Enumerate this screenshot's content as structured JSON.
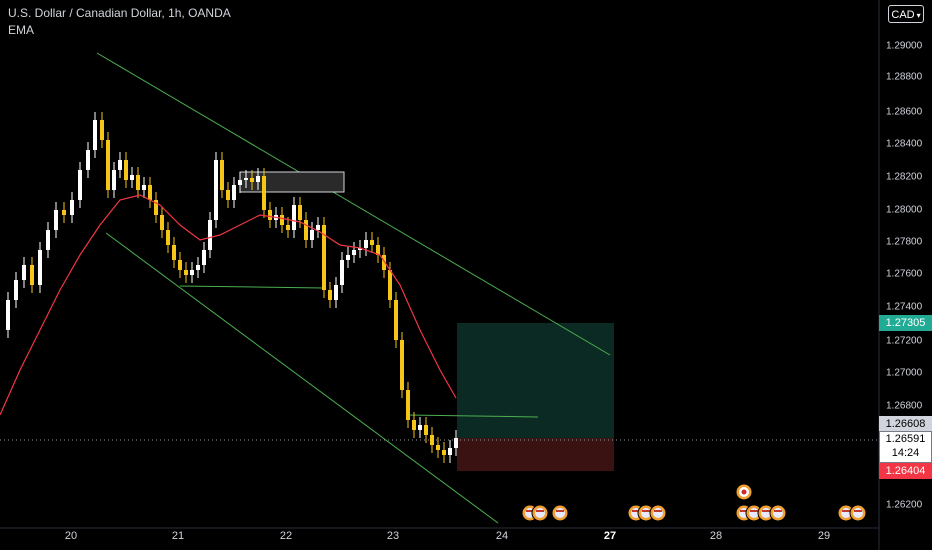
{
  "header": {
    "title": "U.S. Dollar / Canadian Dollar, 1h, OANDA",
    "indicator": "EMA"
  },
  "currency_button": {
    "label": "CAD",
    "icon": "chevron-down-icon"
  },
  "y_axis": {
    "labels": [
      "1.29000",
      "1.28800",
      "1.28600",
      "1.28400",
      "1.28200",
      "1.28000",
      "1.27800",
      "1.27600",
      "1.27400",
      "1.27200",
      "1.27000",
      "1.26800",
      "1.26200"
    ],
    "range": [
      1.26,
      1.2916
    ]
  },
  "x_axis": {
    "labels": [
      {
        "text": "20",
        "bold": false
      },
      {
        "text": "21",
        "bold": false
      },
      {
        "text": "22",
        "bold": false
      },
      {
        "text": "23",
        "bold": false
      },
      {
        "text": "24",
        "bold": false
      },
      {
        "text": "27",
        "bold": true
      },
      {
        "text": "28",
        "bold": false
      },
      {
        "text": "29",
        "bold": false
      }
    ]
  },
  "price_tags": {
    "target": "1.27305",
    "last": "1.26608",
    "current": "1.26591",
    "countdown": "14:24",
    "stop": "1.26404"
  },
  "colors": {
    "background": "#000000",
    "bull_candle": "#ffffff",
    "bear_candle": "#f5c518",
    "ema": "#f23645",
    "channel": "#4caf50",
    "target_zone": "#0b2a24",
    "stop_zone": "#3a1212"
  },
  "event_icons": [
    "us-flag-icon",
    "us-flag-icon",
    "us-flag-icon",
    "ca-flag-icon"
  ]
}
